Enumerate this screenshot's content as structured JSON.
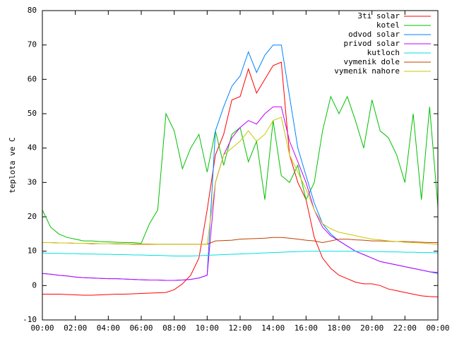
{
  "chart_data": {
    "type": "line",
    "ylabel": "teplota ve C",
    "x": [
      0,
      0.5,
      1,
      1.5,
      2,
      2.5,
      3,
      3.5,
      4,
      4.5,
      5,
      5.5,
      6,
      6.5,
      7,
      7.5,
      8,
      8.5,
      9,
      9.5,
      10,
      10.5,
      11,
      11.5,
      12,
      12.5,
      13,
      13.5,
      14,
      14.5,
      15,
      15.5,
      16,
      16.5,
      17,
      17.5,
      18,
      18.5,
      19,
      19.5,
      20,
      20.5,
      21,
      21.5,
      22,
      22.5,
      23,
      23.5,
      24
    ],
    "series": [
      {
        "name": "3ti solar",
        "color": "#ff0000",
        "values": [
          -2.5,
          -2.5,
          -2.5,
          -2.6,
          -2.7,
          -2.8,
          -2.8,
          -2.7,
          -2.6,
          -2.5,
          -2.5,
          -2.4,
          -2.3,
          -2.2,
          -2.1,
          -2,
          -1.2,
          0.5,
          3,
          8,
          22,
          38,
          44,
          54,
          55,
          63,
          56,
          60,
          64,
          65,
          38,
          30,
          25,
          14,
          8,
          5,
          3,
          2,
          1,
          0.5,
          0.5,
          0,
          -1,
          -1.5,
          -2,
          -2.5,
          -3,
          -3.2,
          -3.3
        ]
      },
      {
        "name": "kotel",
        "color": "#00c000",
        "values": [
          22,
          17,
          15,
          14,
          13.5,
          13,
          13,
          12.8,
          12.7,
          12.6,
          12.5,
          12.5,
          12.3,
          18,
          22,
          50,
          45,
          34,
          40,
          44,
          33,
          45,
          35,
          44,
          46,
          36,
          42,
          25,
          48,
          32,
          30,
          35,
          25,
          30,
          45,
          55,
          50,
          55,
          48,
          40,
          54,
          45,
          43,
          38,
          30,
          50,
          25,
          52,
          23
        ]
      },
      {
        "name": "odvod solar",
        "color": "#0080ff",
        "values": [
          3.5,
          3.3,
          3,
          2.8,
          2.5,
          2.3,
          2.2,
          2.1,
          2,
          2,
          1.9,
          1.8,
          1.7,
          1.6,
          1.6,
          1.5,
          1.5,
          1.6,
          1.8,
          2.2,
          3,
          45,
          52,
          58,
          61,
          68,
          62,
          67,
          70,
          70,
          55,
          40,
          32,
          24,
          18,
          15,
          13,
          11.5,
          10,
          9,
          8,
          7,
          6.5,
          6,
          5.5,
          5,
          4.5,
          4,
          3.5
        ]
      },
      {
        "name": "privod solar",
        "color": "#c000ff",
        "values": [
          3.5,
          3.3,
          3,
          2.8,
          2.5,
          2.3,
          2.2,
          2.1,
          2,
          2,
          1.9,
          1.8,
          1.7,
          1.6,
          1.6,
          1.5,
          1.5,
          1.6,
          1.8,
          2.2,
          3,
          30,
          38,
          43,
          46,
          48,
          47,
          50,
          52,
          52,
          42,
          36,
          30,
          22,
          17,
          14.5,
          13,
          11.5,
          10,
          9,
          8,
          7,
          6.5,
          6,
          5.5,
          5,
          4.5,
          4,
          3.8
        ]
      },
      {
        "name": "kutloch",
        "color": "#00e0e0",
        "values": [
          9.5,
          9.4,
          9.4,
          9.3,
          9.3,
          9.2,
          9.2,
          9.1,
          9.1,
          9,
          9,
          8.9,
          8.9,
          8.8,
          8.8,
          8.7,
          8.6,
          8.6,
          8.6,
          8.7,
          8.8,
          8.9,
          9,
          9.1,
          9.2,
          9.3,
          9.4,
          9.5,
          9.6,
          9.7,
          9.8,
          9.9,
          10,
          10,
          10,
          10,
          10,
          10,
          10,
          10,
          9.9,
          9.9,
          9.8,
          9.8,
          9.7,
          9.7,
          9.6,
          9.6,
          9.5
        ]
      },
      {
        "name": "vymenik dole",
        "color": "#c04000",
        "values": [
          12.5,
          12.5,
          12.4,
          12.4,
          12.3,
          12.3,
          12.2,
          12.2,
          12.2,
          12.1,
          12.1,
          12,
          12,
          12,
          12,
          12,
          12,
          12,
          12,
          12,
          12,
          13,
          13.1,
          13.2,
          13.5,
          13.6,
          13.7,
          13.8,
          14,
          14,
          13.8,
          13.5,
          13.2,
          13,
          12.5,
          13,
          13.5,
          13.5,
          13.3,
          13.2,
          13,
          13,
          12.9,
          12.8,
          12.8,
          12.7,
          12.6,
          12.5,
          12.5
        ]
      },
      {
        "name": "vymenik nahore",
        "color": "#c8c800",
        "values": [
          12.5,
          12.5,
          12.4,
          12.4,
          12.3,
          12.3,
          12.3,
          12.2,
          12.2,
          12.2,
          12.1,
          12.1,
          12.1,
          12.1,
          12,
          12,
          12,
          12,
          12,
          12,
          12,
          30,
          38,
          40,
          42,
          45,
          42,
          44,
          48,
          49,
          38,
          33,
          28,
          22,
          18,
          16.5,
          15.5,
          15,
          14.5,
          14,
          13.5,
          13.3,
          13,
          12.8,
          12.6,
          12.5,
          12.4,
          12.2,
          12
        ]
      }
    ],
    "xlim": [
      0,
      24
    ],
    "xticks": [
      {
        "value": 0,
        "label": "00:00"
      },
      {
        "value": 2,
        "label": "02:00"
      },
      {
        "value": 4,
        "label": "04:00"
      },
      {
        "value": 6,
        "label": "06:00"
      },
      {
        "value": 8,
        "label": "08:00"
      },
      {
        "value": 10,
        "label": "10:00"
      },
      {
        "value": 12,
        "label": "12:00"
      },
      {
        "value": 14,
        "label": "14:00"
      },
      {
        "value": 16,
        "label": "16:00"
      },
      {
        "value": 18,
        "label": "18:00"
      },
      {
        "value": 20,
        "label": "20:00"
      },
      {
        "value": 22,
        "label": "22:00"
      },
      {
        "value": 24,
        "label": "00:00"
      }
    ],
    "ylim": [
      -10,
      80
    ],
    "yticks": [
      -10,
      0,
      10,
      20,
      30,
      40,
      50,
      60,
      70,
      80
    ],
    "grid": false,
    "legend": "top-right"
  }
}
